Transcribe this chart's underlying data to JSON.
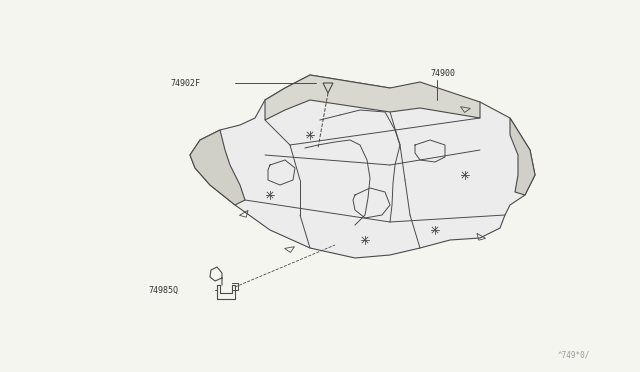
{
  "bg_color": "#f5f5f0",
  "line_color": "#4a4a4a",
  "label_color": "#333333",
  "watermark": "^749*0/",
  "fig_w": 6.4,
  "fig_h": 3.72,
  "dpi": 100
}
